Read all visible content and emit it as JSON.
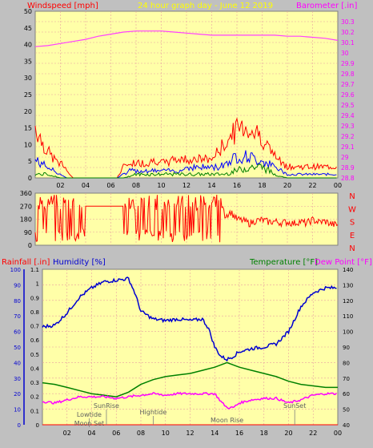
{
  "header": {
    "title": "24 hour graph day - June 12 2019",
    "wind_label": "Windspeed [mph]",
    "baro_label": "Barometer [.in]"
  },
  "colors": {
    "plot_bg": "#ffffa8",
    "grid": "#e8a0a0",
    "wind": "#ff0000",
    "wind_avg": "#0000ff",
    "wind_low": "#008000",
    "baro": "#ff40ff",
    "humidity": "#0000d0",
    "temperature": "#008000",
    "dewpoint": "#ff00ff",
    "title": "#ffff00",
    "rain_label": "#ff0000",
    "axis_text": "#000000"
  },
  "chart_data": [
    {
      "type": "line",
      "name": "wind-baro",
      "x_ticks": [
        "02",
        "04",
        "06",
        "08",
        "10",
        "12",
        "14",
        "16",
        "18",
        "20",
        "22",
        "00"
      ],
      "ylabel_left": "Windspeed [mph]",
      "ylabel_right": "Barometer [.in]",
      "ylim_left": [
        0,
        50
      ],
      "ylim_right": [
        28.8,
        30.4
      ],
      "yticks_left": [
        "0",
        "5",
        "10",
        "15",
        "20",
        "25",
        "30",
        "35",
        "40",
        "45",
        "50"
      ],
      "yticks_right": [
        "28.8",
        "28.9",
        "29",
        "29.1",
        "29.2",
        "29.3",
        "29.4",
        "29.5",
        "29.6",
        "29.7",
        "29.8",
        "29.9",
        "30",
        "30.1",
        "30.2",
        "30.3"
      ],
      "barometer": {
        "x": [
          0,
          1,
          2,
          3,
          4,
          5,
          6,
          7,
          8,
          9,
          10,
          11,
          12,
          13,
          14,
          15,
          16,
          17,
          18,
          19,
          20,
          21,
          22,
          23,
          24
        ],
        "y": [
          30.06,
          30.07,
          30.09,
          30.11,
          30.13,
          30.16,
          30.18,
          30.2,
          30.21,
          30.21,
          30.21,
          30.2,
          30.19,
          30.18,
          30.17,
          30.17,
          30.17,
          30.17,
          30.17,
          30.17,
          30.16,
          30.16,
          30.15,
          30.14,
          30.12
        ]
      },
      "wind_gust": {
        "x": [
          0,
          0.5,
          1,
          1.5,
          2,
          2.5,
          3,
          3.5,
          4,
          4.5,
          5,
          5.5,
          6,
          6.5,
          7,
          7.5,
          8,
          8.5,
          9,
          9.5,
          10,
          10.5,
          11,
          11.5,
          12,
          12.5,
          13,
          13.5,
          14,
          14.5,
          15,
          15.5,
          16,
          16.5,
          17,
          17.5,
          18,
          18.5,
          19,
          19.5,
          20,
          20.5,
          21,
          21.5,
          22,
          22.5,
          23,
          23.5,
          24
        ],
        "y": [
          14,
          10,
          7,
          5,
          4,
          2,
          0,
          0,
          0,
          0,
          0,
          0,
          0,
          0,
          3,
          4,
          4,
          4,
          4,
          5,
          4,
          4,
          5,
          5,
          5,
          5,
          5,
          5,
          5,
          7,
          9,
          11,
          13,
          14,
          13,
          12,
          11,
          8,
          6,
          4,
          3,
          3,
          3,
          3,
          3,
          3,
          3,
          3,
          3
        ]
      },
      "wind_avg": {
        "x": [
          0,
          0.5,
          1,
          1.5,
          2,
          2.5,
          3,
          3.5,
          4,
          4.5,
          5,
          5.5,
          6,
          6.5,
          7,
          7.5,
          8,
          8.5,
          9,
          9.5,
          10,
          10.5,
          11,
          11.5,
          12,
          12.5,
          13,
          13.5,
          14,
          14.5,
          15,
          15.5,
          16,
          16.5,
          17,
          17.5,
          18,
          18.5,
          19,
          19.5,
          20,
          20.5,
          21,
          21.5,
          22,
          22.5,
          23,
          23.5,
          24
        ],
        "y": [
          5,
          4,
          3,
          2,
          1,
          0,
          0,
          0,
          0,
          0,
          0,
          0,
          0,
          0,
          1,
          2,
          2,
          2,
          2,
          2,
          2,
          2,
          2,
          2,
          3,
          3,
          3,
          3,
          3,
          3,
          4,
          5,
          6,
          6,
          6,
          5,
          5,
          4,
          3,
          2,
          1,
          1,
          1,
          1,
          1,
          1,
          1,
          1,
          1
        ]
      },
      "wind_low": {
        "x": [
          0,
          1,
          2,
          3,
          4,
          5,
          6,
          7,
          8,
          9,
          10,
          11,
          12,
          13,
          14,
          15,
          16,
          17,
          18,
          19,
          20,
          21,
          22,
          23,
          24
        ],
        "y": [
          1,
          1,
          0,
          0,
          0,
          0,
          0,
          0,
          1,
          1,
          1,
          1,
          1,
          1,
          1,
          1,
          2,
          3,
          3,
          1,
          0,
          0,
          0,
          0,
          0
        ]
      }
    },
    {
      "type": "scatter",
      "name": "wind-direction",
      "x_ticks": [],
      "yticks": [
        "0",
        "90",
        "180",
        "270",
        "360"
      ],
      "ylim": [
        0,
        360
      ],
      "compass_labels": [
        "N",
        "W",
        "S",
        "E",
        "N"
      ],
      "direction": {
        "x": [
          0,
          0.5,
          1,
          1.5,
          2,
          3,
          4,
          5,
          6,
          7,
          7.5,
          8,
          8.5,
          9,
          9.5,
          10,
          10.5,
          11,
          11.5,
          12,
          12.5,
          13,
          13.5,
          14,
          14.5,
          15,
          15.5,
          16,
          16.5,
          17,
          17.5,
          18,
          18.5,
          19,
          19.5,
          20,
          20.5,
          21,
          21.5,
          22,
          22.5,
          23,
          23.5,
          24
        ],
        "y": [
          280,
          60,
          300,
          250,
          290,
          270,
          270,
          270,
          270,
          20,
          260,
          180,
          280,
          100,
          270,
          230,
          290,
          60,
          250,
          150,
          300,
          120,
          280,
          60,
          300,
          200,
          230,
          180,
          170,
          150,
          170,
          175,
          160,
          165,
          155,
          160,
          150,
          165,
          150,
          175,
          160,
          165,
          145,
          140
        ]
      }
    },
    {
      "type": "line",
      "name": "rain-humidity-temp",
      "x_ticks": [
        "02",
        "04",
        "06",
        "08",
        "10",
        "12",
        "14",
        "16",
        "18",
        "20",
        "22",
        "00"
      ],
      "ylabel_rain": "Rainfall [.in]",
      "ylabel_humidity": "Humidity [%]",
      "ylabel_temp": "Temperature [°F]",
      "ylabel_dew": "Dew Point [°F]",
      "ylim_humidity": [
        0,
        100
      ],
      "ylim_rain": [
        0,
        1.1
      ],
      "ylim_temp": [
        40,
        140
      ],
      "yticks_humidity": [
        "0",
        "10",
        "20",
        "30",
        "40",
        "50",
        "60",
        "70",
        "80",
        "90",
        "100"
      ],
      "yticks_rain": [
        "0",
        "0.1",
        "0.2",
        "0.3",
        "0.4",
        "0.5",
        "0.6",
        "0.7",
        "0.8",
        "0.9",
        "1",
        "1.1"
      ],
      "yticks_temp": [
        "40",
        "50",
        "60",
        "70",
        "80",
        "90",
        "100",
        "110",
        "120",
        "130",
        "140"
      ],
      "humidity": {
        "x": [
          0,
          1,
          2,
          3,
          4,
          5,
          6,
          7,
          7.5,
          8,
          9,
          10,
          11,
          12,
          13,
          13.5,
          14,
          14.5,
          15,
          15.5,
          16,
          17,
          18,
          19,
          20,
          21,
          22,
          23,
          24
        ],
        "y": [
          63,
          64,
          72,
          82,
          88,
          92,
          93,
          94,
          85,
          73,
          68,
          67,
          68,
          67,
          68,
          62,
          50,
          44,
          42,
          44,
          47,
          49,
          50,
          52,
          60,
          76,
          85,
          88,
          88
        ]
      },
      "temperature": {
        "x": [
          0,
          1,
          2,
          3,
          4,
          5,
          6,
          7,
          8,
          9,
          10,
          11,
          12,
          13,
          14,
          15,
          16,
          17,
          18,
          19,
          20,
          21,
          22,
          23,
          24
        ],
        "y": [
          27,
          26,
          24,
          22,
          20,
          19,
          18,
          21,
          26,
          29,
          31,
          32,
          33,
          35,
          37,
          40,
          37,
          35,
          33,
          31,
          28,
          26,
          25,
          24,
          24
        ]
      },
      "dew_point": {
        "x": [
          0,
          1,
          2,
          3,
          4,
          5,
          6,
          7,
          8,
          9,
          10,
          11,
          12,
          13,
          14,
          14.5,
          15,
          15.5,
          16,
          17,
          18,
          19,
          20,
          21,
          22,
          23,
          24
        ],
        "y": [
          15,
          14,
          16,
          18,
          18,
          18,
          17,
          18,
          19,
          20,
          19,
          20,
          20,
          20,
          20,
          15,
          11,
          11,
          14,
          16,
          17,
          17,
          14,
          16,
          19,
          20,
          20
        ]
      },
      "rainfall": {
        "x": [
          0,
          24
        ],
        "y": [
          0,
          0
        ]
      },
      "annotations": [
        {
          "label": "Lowtide",
          "hour": 3.8
        },
        {
          "label": "Moon Set",
          "hour": 3.8
        },
        {
          "label": "SunRise",
          "hour": 5.2
        },
        {
          "label": "Hightide",
          "hour": 9.0
        },
        {
          "label": "Moon Rise",
          "hour": 15.0
        },
        {
          "label": "SunSet",
          "hour": 20.5
        }
      ]
    }
  ]
}
